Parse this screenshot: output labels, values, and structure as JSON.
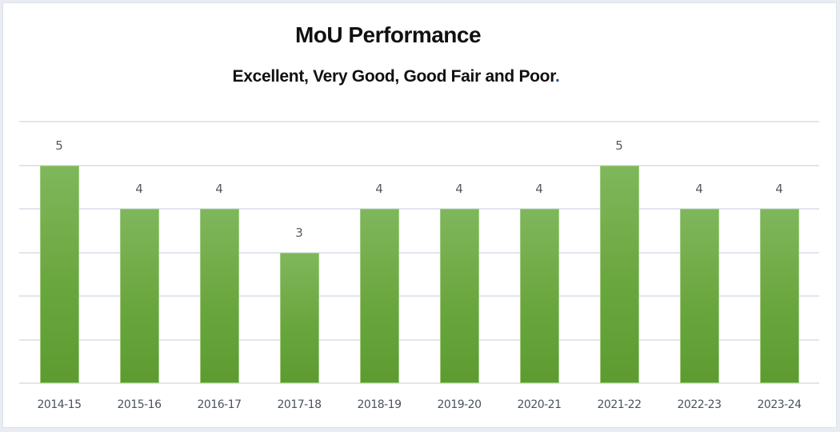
{
  "chart": {
    "title": "MoU Performance",
    "subtitle": "Excellent, Very Good,  Good Fair and Poor",
    "subtitle_end": "."
  },
  "colors": {
    "bar_top": "#7fb75c",
    "bar_bottom": "#5d9b31",
    "gridline": "#e1e5ec",
    "label_text": "#4a5160"
  },
  "chart_data": {
    "type": "bar",
    "title": "MoU Performance",
    "subtitle": "Excellent, Very Good, Good Fair and Poor.",
    "categories": [
      "2014-15",
      "2015-16",
      "2016-17",
      "2017-18",
      "2018-19",
      "2019-20",
      "2020-21",
      "2021-22",
      "2022-23",
      "2023-24"
    ],
    "values": [
      5,
      4,
      4,
      3,
      4,
      4,
      4,
      5,
      4,
      4
    ],
    "xlabel": "",
    "ylabel": "",
    "ylim": [
      0,
      6
    ],
    "grid": true,
    "data_labels": true,
    "legend": "none"
  }
}
